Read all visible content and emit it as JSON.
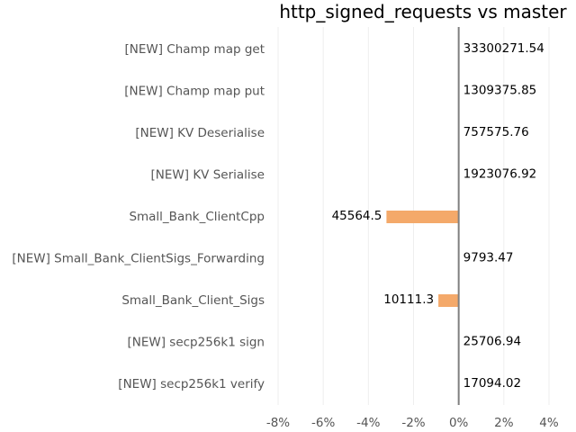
{
  "chart_data": {
    "type": "bar",
    "orientation": "horizontal",
    "title": "http_signed_requests vs master",
    "categories": [
      "[NEW] Champ map get",
      "[NEW] Champ map put",
      "[NEW] KV Deserialise",
      "[NEW] KV Serialise",
      "Small_Bank_ClientCpp",
      "[NEW] Small_Bank_ClientSigs_Forwarding",
      "Small_Bank_Client_Sigs",
      "[NEW] secp256k1 sign",
      "[NEW] secp256k1 verify"
    ],
    "values": [
      0,
      0,
      0,
      0,
      -3.2,
      0,
      -0.9,
      0,
      0
    ],
    "value_labels": [
      "33300271.54",
      "1309375.85",
      "757575.76",
      "1923076.92",
      "45564.5",
      "9793.47",
      "10111.3",
      "25706.94",
      "17094.02"
    ],
    "xlim": [
      -8,
      4
    ],
    "xticks": [
      -8,
      -6,
      -4,
      -2,
      0,
      2,
      4
    ],
    "xtick_labels": [
      "-8%",
      "-6%",
      "-4%",
      "-2%",
      "0%",
      "2%",
      "4%"
    ],
    "xlabel": "",
    "ylabel": "",
    "bar_color": "#f4a96a",
    "zero_line_color": "#808080",
    "grid": true,
    "grid_color": "#eeeeee"
  }
}
